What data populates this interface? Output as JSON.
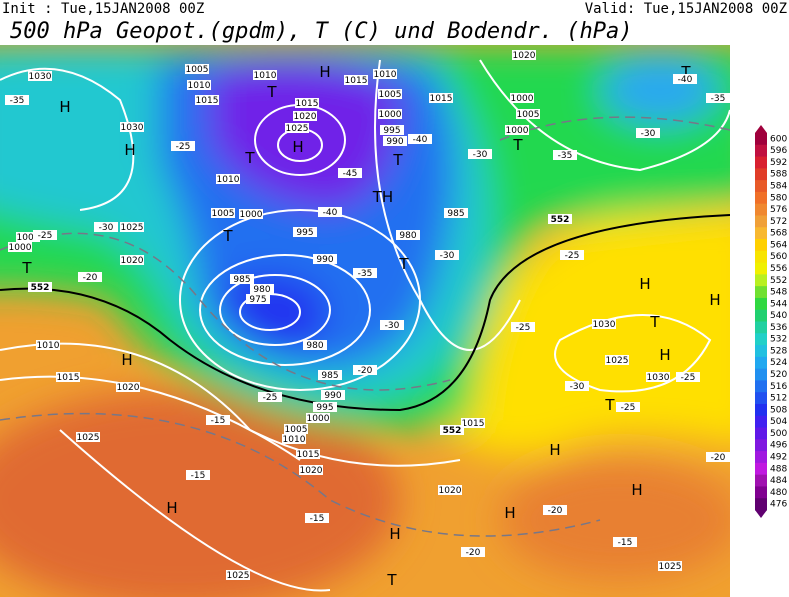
{
  "header": {
    "init": "Init : Tue,15JAN2008 00Z",
    "valid": "Valid: Tue,15JAN2008 00Z",
    "title": "500 hPa Geopot.(gpdm), T (C) und Bodendr. (hPa)"
  },
  "colorbar": {
    "levels": [
      600,
      596,
      592,
      588,
      584,
      580,
      576,
      572,
      568,
      564,
      560,
      556,
      552,
      548,
      544,
      540,
      536,
      532,
      528,
      524,
      520,
      516,
      512,
      508,
      504,
      500,
      496,
      492,
      488,
      484,
      480,
      476
    ],
    "colors": [
      "#a0003c",
      "#c01040",
      "#d82030",
      "#e03c28",
      "#e85a28",
      "#f07028",
      "#f08830",
      "#f0a038",
      "#f8b830",
      "#ffd000",
      "#f8e400",
      "#f0f000",
      "#b8f020",
      "#70e030",
      "#30d840",
      "#20d070",
      "#20d0a0",
      "#20d0c8",
      "#20c0e0",
      "#20a8f0",
      "#2090f0",
      "#2070f0",
      "#2050f0",
      "#2030f0",
      "#4020f0",
      "#6018e8",
      "#8018e0",
      "#a018e0",
      "#c018e0",
      "#a010b0",
      "#800090",
      "#600070"
    ]
  },
  "pressure_systems": [
    "H",
    "H",
    "T",
    "H",
    "H",
    "H",
    "T",
    "T",
    "TH",
    "T",
    "T",
    "H",
    "T",
    "H",
    "H",
    "H",
    "T",
    "T",
    "H",
    "H",
    "H",
    "H",
    "T",
    "T",
    "T"
  ],
  "isobar_labels": [
    "1030",
    "1005",
    "1010",
    "1015",
    "1030",
    "1010",
    "1005",
    "1000",
    "1005",
    "1000",
    "1025",
    "1020",
    "1010",
    "1015",
    "1020",
    "1025",
    "1025",
    "1020",
    "995",
    "990",
    "985",
    "980",
    "975",
    "980",
    "985",
    "990",
    "995",
    "1000",
    "1005",
    "1010",
    "1015",
    "1020",
    "1015",
    "1030",
    "1025",
    "1030",
    "1020",
    "1010",
    "1005",
    "1015",
    "1000",
    "1005",
    "1000",
    "1020",
    "1025",
    "1015",
    "1010",
    "1015",
    "995",
    "990",
    "985",
    "980",
    "1000",
    "1025"
  ],
  "temperature_labels": [
    "-35",
    "-35",
    "-45",
    "-40",
    "-40",
    "-30",
    "-35",
    "-30",
    "-25",
    "-25",
    "-30",
    "-20",
    "-25",
    "-25",
    "-30",
    "-25",
    "-20",
    "-25",
    "-15",
    "-15",
    "-15",
    "-20",
    "-20",
    "-15",
    "-20",
    "-25",
    "-35",
    "-40",
    "-30",
    "-30"
  ],
  "height_labels": [
    "552",
    "552",
    "552"
  ]
}
